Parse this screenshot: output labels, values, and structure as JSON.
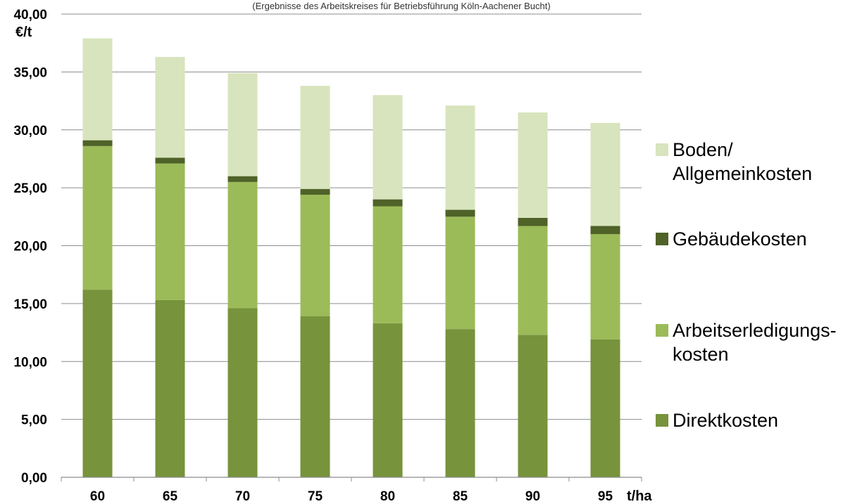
{
  "chart_data": {
    "type": "bar",
    "stacked": true,
    "subtitle": "(Ergebnisse des Arbeitskreises für Betriebsführung Köln-Aachener Bucht)",
    "ylabel": "€/t",
    "xlabel": "t/ha",
    "ylim": [
      0,
      40
    ],
    "y_ticks": [
      "0,00",
      "5,00",
      "10,00",
      "15,00",
      "20,00",
      "25,00",
      "30,00",
      "35,00",
      "40,00"
    ],
    "categories": [
      "60",
      "65",
      "70",
      "75",
      "80",
      "85",
      "90",
      "95"
    ],
    "grid": true,
    "legend_position": "right",
    "series": [
      {
        "name": "Direktkosten",
        "color": "#77933c",
        "values": [
          16.2,
          15.3,
          14.6,
          13.9,
          13.3,
          12.8,
          12.3,
          11.9
        ]
      },
      {
        "name": "Arbeitserledigungs-kosten",
        "color": "#9bbb59",
        "values": [
          12.4,
          11.8,
          10.9,
          10.5,
          10.1,
          9.7,
          9.4,
          9.1
        ]
      },
      {
        "name": "Gebäudekosten",
        "color": "#4f6228",
        "values": [
          0.5,
          0.5,
          0.5,
          0.5,
          0.6,
          0.6,
          0.7,
          0.7
        ]
      },
      {
        "name": "Boden/ Allgemeinkosten",
        "color": "#d7e4bd",
        "values": [
          8.8,
          8.7,
          8.9,
          8.9,
          9.0,
          9.0,
          9.1,
          8.9
        ]
      }
    ],
    "legend": [
      {
        "lines": [
          "Boden/",
          "Allgemeinkosten"
        ],
        "color": "#d7e4bd"
      },
      {
        "lines": [
          "Gebäudekosten"
        ],
        "color": "#4f6228"
      },
      {
        "lines": [
          "Arbeitserledigungs-",
          "kosten"
        ],
        "color": "#9bbb59"
      },
      {
        "lines": [
          "Direktkosten"
        ],
        "color": "#77933c"
      }
    ]
  }
}
